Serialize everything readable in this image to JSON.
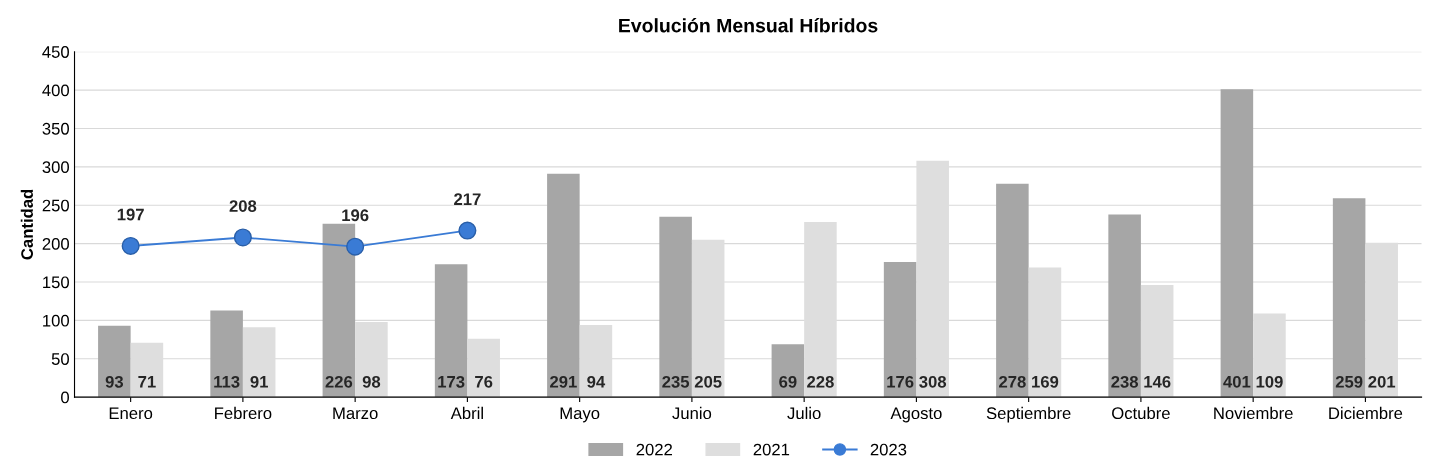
{
  "chart_data": {
    "type": "bar",
    "title": "Evolución Mensual Híbridos",
    "ylabel": "Cantidad",
    "categories": [
      "Enero",
      "Febrero",
      "Marzo",
      "Abril",
      "Mayo",
      "Junio",
      "Julio",
      "Agosto",
      "Septiembre",
      "Octubre",
      "Noviembre",
      "Diciembre"
    ],
    "series": [
      {
        "name": "2022",
        "color": "#a6a6a6",
        "values": [
          93,
          113,
          226,
          173,
          291,
          235,
          69,
          176,
          278,
          238,
          401,
          259
        ]
      },
      {
        "name": "2021",
        "color": "#dedede",
        "values": [
          71,
          91,
          98,
          76,
          94,
          205,
          228,
          308,
          169,
          146,
          109,
          201
        ]
      },
      {
        "name": "2023",
        "type": "line",
        "color": "#3a7bd5",
        "values": [
          197,
          208,
          196,
          217,
          null,
          null,
          null,
          null,
          null,
          null,
          null,
          null
        ]
      }
    ],
    "ylim": [
      0,
      450
    ],
    "yticks": [
      0,
      50,
      100,
      150,
      200,
      250,
      300,
      350,
      400,
      450
    ],
    "grid": "y",
    "legend": "bottom",
    "marker": "circle",
    "data_labels": true
  }
}
